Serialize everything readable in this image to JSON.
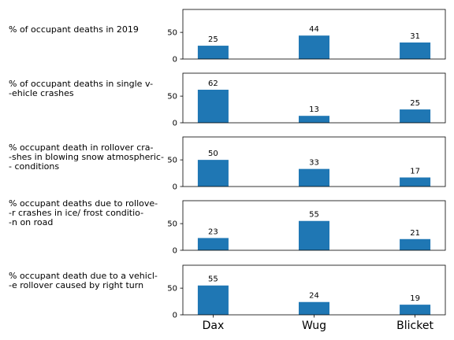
{
  "chart_data": {
    "type": "bar",
    "categories": [
      "Dax",
      "Wug",
      "Blicket"
    ],
    "bar_color": "#1f77b4",
    "grid": false,
    "panels": [
      {
        "label": "% of occupant deaths in 2019",
        "values": [
          25,
          44,
          31
        ],
        "ylim": [
          0,
          93
        ],
        "yticks": [
          0,
          50
        ]
      },
      {
        "label": "% of occupant deaths in single v-\n-ehicle crashes",
        "values": [
          62,
          13,
          25
        ],
        "ylim": [
          0,
          93
        ],
        "yticks": [
          0,
          50
        ]
      },
      {
        "label": "% occupant death in rollover cra-\n-shes in blowing snow atmospheric-\n- conditions",
        "values": [
          50,
          33,
          17
        ],
        "ylim": [
          0,
          93
        ],
        "yticks": [
          0,
          50
        ]
      },
      {
        "label": "% occupant deaths due to rollove-\n-r crashes in ice/ frost conditio-\n-n on road",
        "values": [
          23,
          55,
          21
        ],
        "ylim": [
          0,
          93
        ],
        "yticks": [
          0,
          50
        ]
      },
      {
        "label": "% occupant death due to a vehicl-\n-e rollover caused by right turn",
        "values": [
          55,
          24,
          19
        ],
        "ylim": [
          0,
          93
        ],
        "yticks": [
          0,
          50
        ]
      }
    ]
  }
}
